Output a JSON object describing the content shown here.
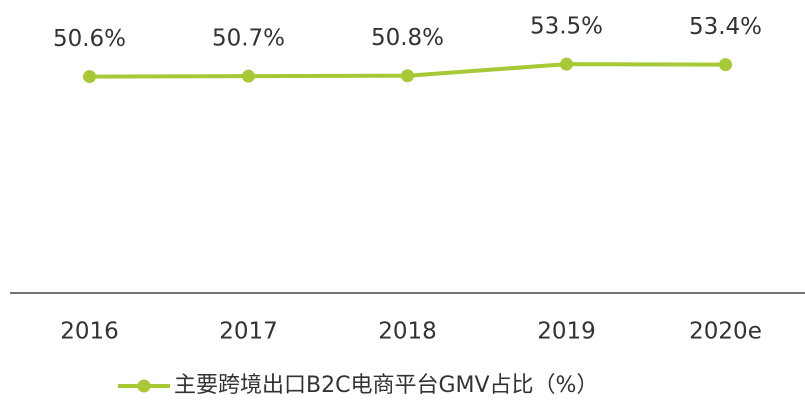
{
  "chart_data": {
    "type": "line",
    "categories": [
      "2016",
      "2017",
      "2018",
      "2019",
      "2020e"
    ],
    "series": [
      {
        "name": "主要跨境出口B2C电商平台GMV占比（%）",
        "color": "#a6c935",
        "values": [
          50.6,
          50.7,
          50.8,
          53.5,
          53.4
        ],
        "value_labels": [
          "50.6%",
          "50.7%",
          "50.8%",
          "53.5%",
          "53.4%"
        ]
      }
    ],
    "ylim": [
      0,
      65
    ],
    "legend": "bottom"
  }
}
